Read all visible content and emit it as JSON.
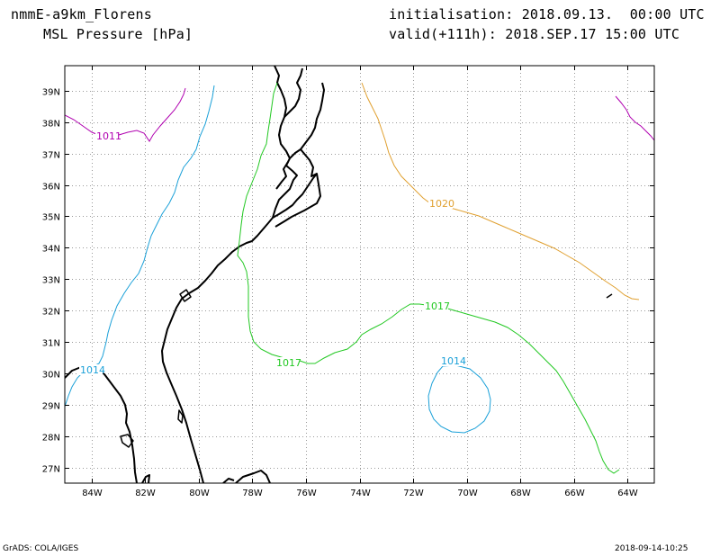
{
  "header": {
    "model_name": "nmmE-a9km_Florens",
    "field_name": "MSL Pressure [hPa]",
    "initialisation": "initialisation: 2018.09.13.  00:00 UTC",
    "valid": "valid(+111h): 2018.SEP.17 15:00 UTC"
  },
  "footer": {
    "credit": "GrADS: COLA/IGES",
    "timestamp": "2018-09-14-10:25"
  },
  "map": {
    "lon_range": [
      -85,
      -63
    ],
    "lat_range": [
      26.5,
      39.8
    ],
    "grid": true,
    "lon_ticks": [
      "84W",
      "82W",
      "80W",
      "78W",
      "76W",
      "74W",
      "72W",
      "70W",
      "68W",
      "66W",
      "64W"
    ],
    "lat_ticks": [
      "39N",
      "38N",
      "37N",
      "36N",
      "35N",
      "34N",
      "33N",
      "32N",
      "31N",
      "30N",
      "29N",
      "28N",
      "27N"
    ]
  },
  "contours": [
    {
      "value": "1011",
      "color": "#b000b0"
    },
    {
      "value": "1014",
      "color": "#1aa0d8"
    },
    {
      "value": "1017",
      "color": "#22c822"
    },
    {
      "value": "1020",
      "color": "#e0a030"
    }
  ]
}
